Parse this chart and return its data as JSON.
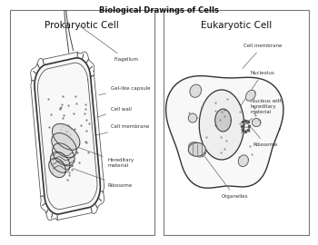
{
  "title": "Biological Drawings of Cells",
  "title_fontsize": 6,
  "title_fontweight": "bold",
  "bg_color": "#ffffff",
  "label_fontsize": 4.0,
  "subtitle_fontsize": 7.5,
  "left_title": "Prokaryotic Cell",
  "right_title": "Eukaryotic Cell",
  "prok_labels": [
    "Flagellum",
    "Gel-like capsule",
    "Cell wall",
    "Cell membrane",
    "Hereditary\nmaterial",
    "Ribosome"
  ],
  "euk_labels": [
    "Cell membrane",
    "Nucleolus",
    "Nucleus with\nhereditary\nmaterial",
    "Ribosome",
    "Organelles"
  ]
}
